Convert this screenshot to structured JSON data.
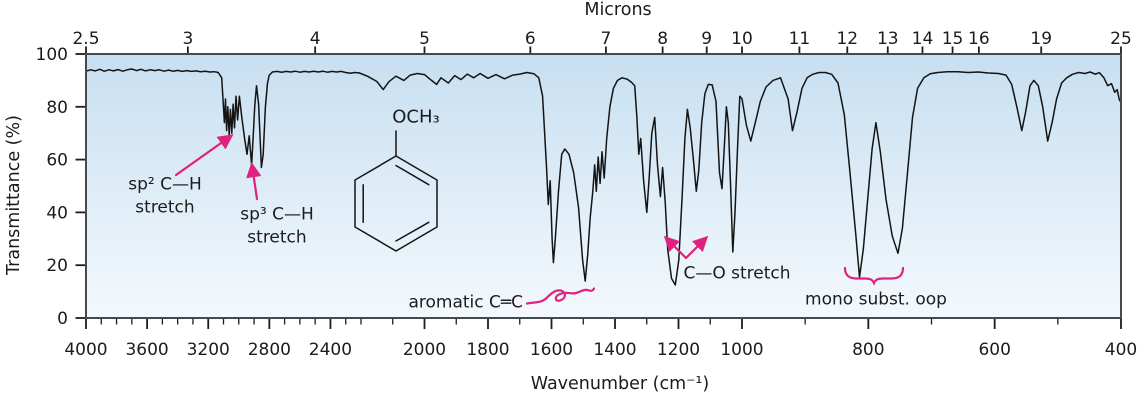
{
  "axes": {
    "top": {
      "title": "Microns",
      "tick_labels": [
        "2.5",
        "3",
        "4",
        "5",
        "6",
        "7",
        "8",
        "9",
        "10",
        "11",
        "12",
        "13",
        "14",
        "15",
        "16",
        "19",
        "25"
      ]
    },
    "bottom": {
      "title": "Wavenumber (cm⁻¹)",
      "major_tick_labels": [
        "4000",
        "3600",
        "3200",
        "2800",
        "2400",
        "2000",
        "1800",
        "1600",
        "1400",
        "1200",
        "1000",
        "800",
        "600",
        "400"
      ],
      "minor_ticks": [
        3900,
        3800,
        3700,
        3500,
        3400,
        3300,
        3100,
        3000,
        2900,
        2700,
        2600,
        2500,
        2300,
        2200,
        2100,
        1900,
        1700,
        1500,
        1300,
        1100,
        900,
        700,
        500
      ]
    },
    "left": {
      "title": "Transmittance (%)",
      "tick_labels": [
        "100",
        "80",
        "60",
        "40",
        "20",
        "0"
      ]
    }
  },
  "molecule": {
    "label": "OCH₃",
    "description": "monosubstituted benzene ring drawn with OCH₃ group"
  },
  "annotations": {
    "sp2": {
      "line1": "sp² C—H",
      "line2": "stretch"
    },
    "sp3": {
      "line1": "sp³ C—H",
      "line2": "stretch"
    },
    "aromatic": {
      "label": "aromatic C═C"
    },
    "co": {
      "label": "C—O stretch"
    },
    "mono": {
      "label": "mono subst. oop"
    }
  },
  "colors": {
    "annotation_pink": "#e0217f",
    "curve": "#141414",
    "axis_border": "#434a52",
    "tick": "#1c1c1c",
    "plot_bg_top": "#c7dff1",
    "plot_bg_bottom": "#f4f9fc",
    "text": "#1c1c1c"
  },
  "chart_data": {
    "type": "line",
    "x_axis": {
      "label": "Wavenumber (cm⁻¹)",
      "range": [
        4000,
        400
      ],
      "direction": "decreasing left to right",
      "scale": "piecewise linear; scale expands 2x below 2200 cm⁻¹ and again below 1000 cm⁻¹"
    },
    "x_axis_top": {
      "label": "Microns",
      "ticks": [
        2.5,
        3,
        4,
        5,
        6,
        7,
        8,
        9,
        10,
        11,
        12,
        13,
        14,
        15,
        16,
        19,
        25
      ]
    },
    "y_axis": {
      "label": "Transmittance (%)",
      "range": [
        0,
        100
      ],
      "ticks": [
        0,
        20,
        40,
        60,
        80,
        100
      ]
    },
    "grid": false,
    "legend": false,
    "peak_annotations": [
      {
        "label": "sp² C—H stretch",
        "arrow_points_to_cm1": 3040
      },
      {
        "label": "sp³ C—H stretch",
        "arrow_points_to_cm1": 2915
      },
      {
        "label": "aromatic C═C",
        "squiggle_spans_cm1": [
          1670,
          1470
        ]
      },
      {
        "label": "C—O stretch",
        "arrows_point_to_cm1": [
          1245,
          1110
        ]
      },
      {
        "label": "mono subst. oop",
        "brace_spans_cm1": [
          837,
          745
        ]
      }
    ],
    "series": [
      {
        "name": "IR transmittance",
        "points": [
          [
            4000,
            93.5
          ],
          [
            3970,
            94
          ],
          [
            3940,
            93.6
          ],
          [
            3910,
            94.2
          ],
          [
            3880,
            93.5
          ],
          [
            3850,
            94
          ],
          [
            3820,
            93.6
          ],
          [
            3790,
            94.1
          ],
          [
            3760,
            93.5
          ],
          [
            3730,
            94
          ],
          [
            3700,
            94.3
          ],
          [
            3670,
            93.7
          ],
          [
            3640,
            94.2
          ],
          [
            3610,
            93.6
          ],
          [
            3580,
            94
          ],
          [
            3550,
            93.7
          ],
          [
            3520,
            94
          ],
          [
            3490,
            93.5
          ],
          [
            3460,
            93.9
          ],
          [
            3430,
            93.5
          ],
          [
            3400,
            93.8
          ],
          [
            3370,
            93.4
          ],
          [
            3340,
            93.7
          ],
          [
            3310,
            93.4
          ],
          [
            3280,
            93.6
          ],
          [
            3250,
            93.3
          ],
          [
            3220,
            93.5
          ],
          [
            3190,
            93.2
          ],
          [
            3160,
            93.3
          ],
          [
            3135,
            93
          ],
          [
            3112,
            91
          ],
          [
            3094,
            74
          ],
          [
            3087,
            83
          ],
          [
            3080,
            71
          ],
          [
            3072,
            80
          ],
          [
            3063,
            69
          ],
          [
            3055,
            79
          ],
          [
            3046,
            70
          ],
          [
            3037,
            81
          ],
          [
            3028,
            72
          ],
          [
            3018,
            84
          ],
          [
            3008,
            75
          ],
          [
            2996,
            84
          ],
          [
            2980,
            76
          ],
          [
            2962,
            68
          ],
          [
            2946,
            62
          ],
          [
            2932,
            69
          ],
          [
            2916,
            58
          ],
          [
            2906,
            68
          ],
          [
            2896,
            80
          ],
          [
            2884,
            88
          ],
          [
            2870,
            81
          ],
          [
            2852,
            57
          ],
          [
            2840,
            62
          ],
          [
            2826,
            80
          ],
          [
            2812,
            89
          ],
          [
            2800,
            92
          ],
          [
            2780,
            93.2
          ],
          [
            2750,
            93.4
          ],
          [
            2720,
            93.1
          ],
          [
            2690,
            93.4
          ],
          [
            2660,
            93.2
          ],
          [
            2630,
            93.5
          ],
          [
            2600,
            93.1
          ],
          [
            2570,
            93.4
          ],
          [
            2540,
            93.2
          ],
          [
            2510,
            93.5
          ],
          [
            2480,
            93.2
          ],
          [
            2450,
            93.5
          ],
          [
            2420,
            93.1
          ],
          [
            2390,
            93.4
          ],
          [
            2360,
            93.2
          ],
          [
            2330,
            93.4
          ],
          [
            2300,
            93
          ],
          [
            2270,
            92.7
          ],
          [
            2240,
            93
          ],
          [
            2210,
            92.8
          ],
          [
            2180,
            91.6
          ],
          [
            2150,
            89.6
          ],
          [
            2130,
            86.5
          ],
          [
            2112,
            89.5
          ],
          [
            2090,
            91.6
          ],
          [
            2065,
            90
          ],
          [
            2045,
            92
          ],
          [
            2022,
            92.6
          ],
          [
            2000,
            92.2
          ],
          [
            1978,
            90
          ],
          [
            1962,
            88.5
          ],
          [
            1948,
            91
          ],
          [
            1925,
            89
          ],
          [
            1905,
            91.8
          ],
          [
            1885,
            90.3
          ],
          [
            1865,
            92.4
          ],
          [
            1845,
            91
          ],
          [
            1825,
            92.6
          ],
          [
            1800,
            90.8
          ],
          [
            1775,
            92.2
          ],
          [
            1748,
            90.6
          ],
          [
            1722,
            92
          ],
          [
            1700,
            92.4
          ],
          [
            1678,
            93
          ],
          [
            1655,
            92.5
          ],
          [
            1640,
            91
          ],
          [
            1628,
            84
          ],
          [
            1616,
            58
          ],
          [
            1610,
            43
          ],
          [
            1604,
            52
          ],
          [
            1598,
            30
          ],
          [
            1594,
            21
          ],
          [
            1588,
            30
          ],
          [
            1578,
            48
          ],
          [
            1568,
            62
          ],
          [
            1558,
            64
          ],
          [
            1545,
            62
          ],
          [
            1530,
            55
          ],
          [
            1515,
            42
          ],
          [
            1502,
            22
          ],
          [
            1494,
            14
          ],
          [
            1486,
            24
          ],
          [
            1478,
            38
          ],
          [
            1470,
            48
          ],
          [
            1464,
            58
          ],
          [
            1459,
            48
          ],
          [
            1453,
            61
          ],
          [
            1447,
            51
          ],
          [
            1441,
            63
          ],
          [
            1434,
            53
          ],
          [
            1426,
            68
          ],
          [
            1416,
            80
          ],
          [
            1405,
            87
          ],
          [
            1392,
            90
          ],
          [
            1378,
            91
          ],
          [
            1362,
            90.5
          ],
          [
            1348,
            89.3
          ],
          [
            1338,
            88
          ],
          [
            1331,
            76
          ],
          [
            1325,
            62
          ],
          [
            1319,
            68
          ],
          [
            1310,
            52
          ],
          [
            1300,
            40
          ],
          [
            1292,
            54
          ],
          [
            1284,
            70
          ],
          [
            1275,
            76
          ],
          [
            1266,
            58
          ],
          [
            1257,
            46
          ],
          [
            1250,
            57
          ],
          [
            1242,
            44
          ],
          [
            1234,
            26
          ],
          [
            1222,
            15
          ],
          [
            1210,
            12.5
          ],
          [
            1199,
            22
          ],
          [
            1189,
            45
          ],
          [
            1180,
            68
          ],
          [
            1172,
            79
          ],
          [
            1163,
            72
          ],
          [
            1153,
            60
          ],
          [
            1144,
            48
          ],
          [
            1136,
            56
          ],
          [
            1127,
            74
          ],
          [
            1117,
            85
          ],
          [
            1106,
            88.5
          ],
          [
            1094,
            88.3
          ],
          [
            1082,
            82
          ],
          [
            1071,
            55
          ],
          [
            1063,
            49
          ],
          [
            1056,
            64
          ],
          [
            1049,
            80
          ],
          [
            1043,
            74
          ],
          [
            1036,
            50
          ],
          [
            1029,
            25
          ],
          [
            1022,
            40
          ],
          [
            1014,
            65
          ],
          [
            1007,
            84
          ],
          [
            1000,
            83
          ],
          [
            993,
            73
          ],
          [
            986,
            67
          ],
          [
            979,
            74
          ],
          [
            971,
            82
          ],
          [
            962,
            87.5
          ],
          [
            951,
            90
          ],
          [
            939,
            91
          ],
          [
            927,
            83
          ],
          [
            920,
            71
          ],
          [
            913,
            78
          ],
          [
            905,
            87
          ],
          [
            897,
            91
          ],
          [
            888,
            92.3
          ],
          [
            878,
            93
          ],
          [
            868,
            93
          ],
          [
            858,
            92.3
          ],
          [
            848,
            89
          ],
          [
            838,
            77
          ],
          [
            829,
            55
          ],
          [
            820,
            32
          ],
          [
            814,
            15.5
          ],
          [
            808,
            26
          ],
          [
            801,
            45
          ],
          [
            794,
            64
          ],
          [
            788,
            74
          ],
          [
            781,
            63
          ],
          [
            772,
            45
          ],
          [
            762,
            31
          ],
          [
            753,
            24.5
          ],
          [
            746,
            34
          ],
          [
            738,
            55
          ],
          [
            730,
            76
          ],
          [
            722,
            87
          ],
          [
            712,
            91
          ],
          [
            702,
            92.5
          ],
          [
            690,
            93
          ],
          [
            675,
            93.3
          ],
          [
            658,
            93.3
          ],
          [
            642,
            93
          ],
          [
            626,
            93.2
          ],
          [
            610,
            92.8
          ],
          [
            594,
            92.6
          ],
          [
            582,
            92
          ],
          [
            573,
            88.5
          ],
          [
            564,
            79
          ],
          [
            557,
            71
          ],
          [
            551,
            78
          ],
          [
            544,
            88
          ],
          [
            538,
            90
          ],
          [
            531,
            88
          ],
          [
            524,
            80
          ],
          [
            516,
            67
          ],
          [
            509,
            74
          ],
          [
            502,
            83
          ],
          [
            494,
            89
          ],
          [
            486,
            91
          ],
          [
            477,
            92.3
          ],
          [
            467,
            93
          ],
          [
            457,
            92.6
          ],
          [
            449,
            93.2
          ],
          [
            441,
            92.4
          ],
          [
            434,
            92.9
          ],
          [
            427,
            91
          ],
          [
            421,
            88
          ],
          [
            415,
            88.8
          ],
          [
            410,
            85.5
          ],
          [
            406,
            86.5
          ],
          [
            403,
            83
          ],
          [
            400,
            81.5
          ]
        ]
      }
    ]
  }
}
